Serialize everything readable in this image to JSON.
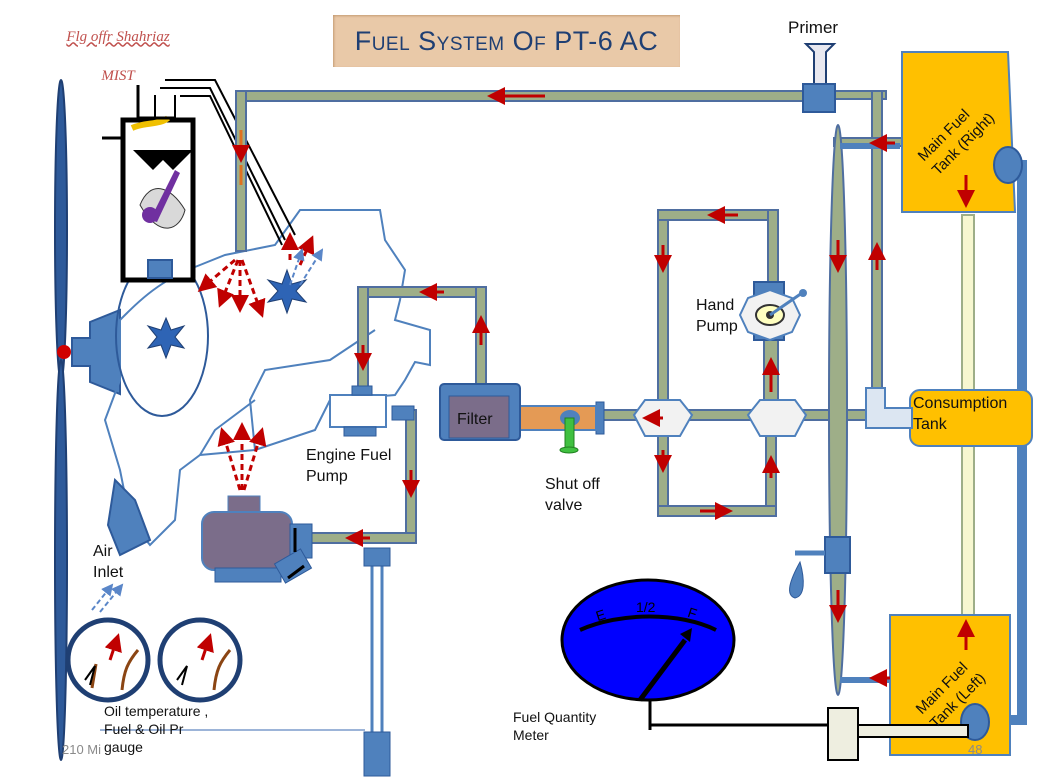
{
  "title": "Fuel System Of PT-6 AC",
  "author": {
    "line1": "Flg offr Shahriaz",
    "line2": "MIST"
  },
  "labels": {
    "primer": "Primer",
    "main_tank_right": "Main Fuel\nTank (Right)",
    "hand_pump": "Hand\nPump",
    "filter": "Filter",
    "consumption_tank": "Consumption\nTank",
    "engine_fuel_pump": "Engine Fuel\nPump",
    "shut_off_valve": "Shut off\nvalve",
    "air_inlet": "Air\nInlet",
    "fuel_quantity_meter": "Fuel Quantity\nMeter",
    "main_tank_left": "Main Fuel\nTank (Left)",
    "gauges_caption": "Oil temperature ,\nFuel & Oil Pr\ngauge"
  },
  "gauge_marks": {
    "empty": "E",
    "half": "1/2",
    "full": "F"
  },
  "footer": {
    "left": "210 Mi",
    "page_number": "48"
  },
  "colors": {
    "pipe_fill": "#9eae88",
    "pipe_edge": "#4f6ea0",
    "tank": "#ffc000",
    "flow_arrow": "#c00000",
    "meter_face": "#0000ff",
    "component_blue": "#4f81bd"
  }
}
